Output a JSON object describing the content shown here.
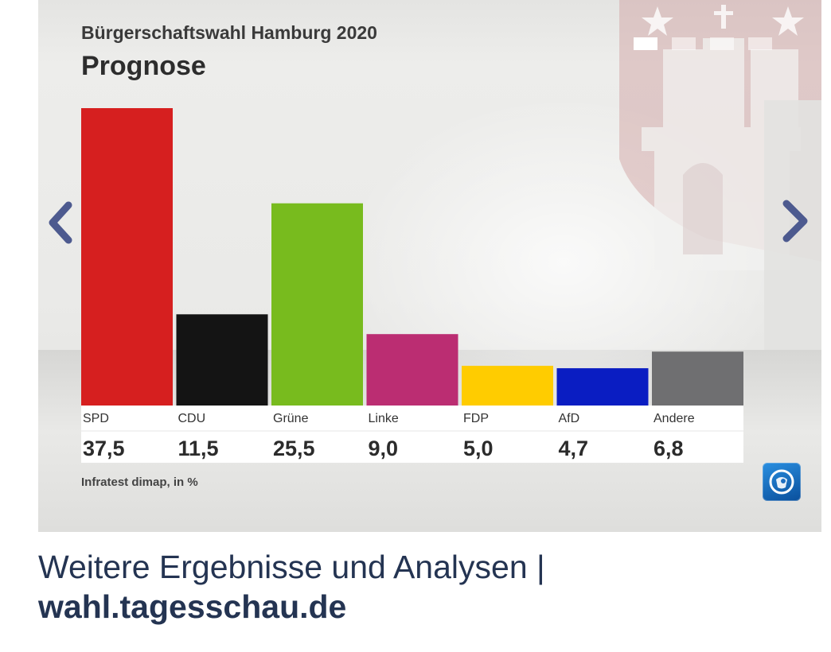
{
  "card": {
    "title": "Bürgerschaftswahl Hamburg 2020",
    "subtitle": "Prognose",
    "source": "Infratest dimap, in %",
    "pager": {
      "count": 4,
      "active_index": 0
    },
    "prev_icon": "chevron-left-icon",
    "next_icon": "chevron-right-icon",
    "logo_icon": "tagesschau-logo-icon",
    "watermark_icon": "hamburg-coat-of-arms-icon"
  },
  "chart_data": {
    "type": "bar",
    "categories": [
      "SPD",
      "CDU",
      "Grüne",
      "Linke",
      "FDP",
      "AfD",
      "Andere"
    ],
    "values": [
      37.5,
      11.5,
      25.5,
      9.0,
      5.0,
      4.7,
      6.8
    ],
    "value_labels": [
      "37,5",
      "11,5",
      "25,5",
      "9,0",
      "5,0",
      "4,7",
      "6,8"
    ],
    "colors": [
      "#d61f1f",
      "#141414",
      "#78bb1e",
      "#bb2d72",
      "#ffcc00",
      "#0a1dc2",
      "#6f6f71"
    ],
    "unit": "%",
    "ylim": [
      0,
      37.5
    ],
    "grid": false,
    "legend": "none"
  },
  "caption": {
    "line1": "Weitere Ergebnisse und Analysen |",
    "link": "wahl.tagesschau.de"
  }
}
